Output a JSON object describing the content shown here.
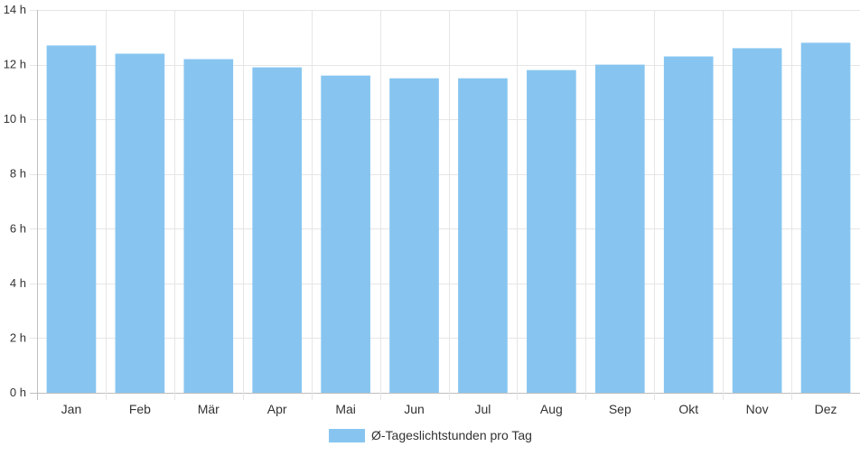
{
  "chart_data": {
    "type": "bar",
    "categories": [
      "Jan",
      "Feb",
      "Mär",
      "Apr",
      "Mai",
      "Jun",
      "Jul",
      "Aug",
      "Sep",
      "Okt",
      "Nov",
      "Dez"
    ],
    "series": [
      {
        "name": "Ø-Tageslichtstunden pro Tag",
        "values": [
          12.7,
          12.4,
          12.2,
          11.9,
          11.6,
          11.5,
          11.5,
          11.8,
          12.0,
          12.3,
          12.6,
          12.8
        ],
        "color": "#87c5f0"
      }
    ],
    "y_ticks": [
      "0 h",
      "2 h",
      "4 h",
      "6 h",
      "8 h",
      "10 h",
      "12 h",
      "14 h"
    ],
    "ylim": [
      0,
      14
    ],
    "grid": true,
    "legend_position": "bottom"
  }
}
